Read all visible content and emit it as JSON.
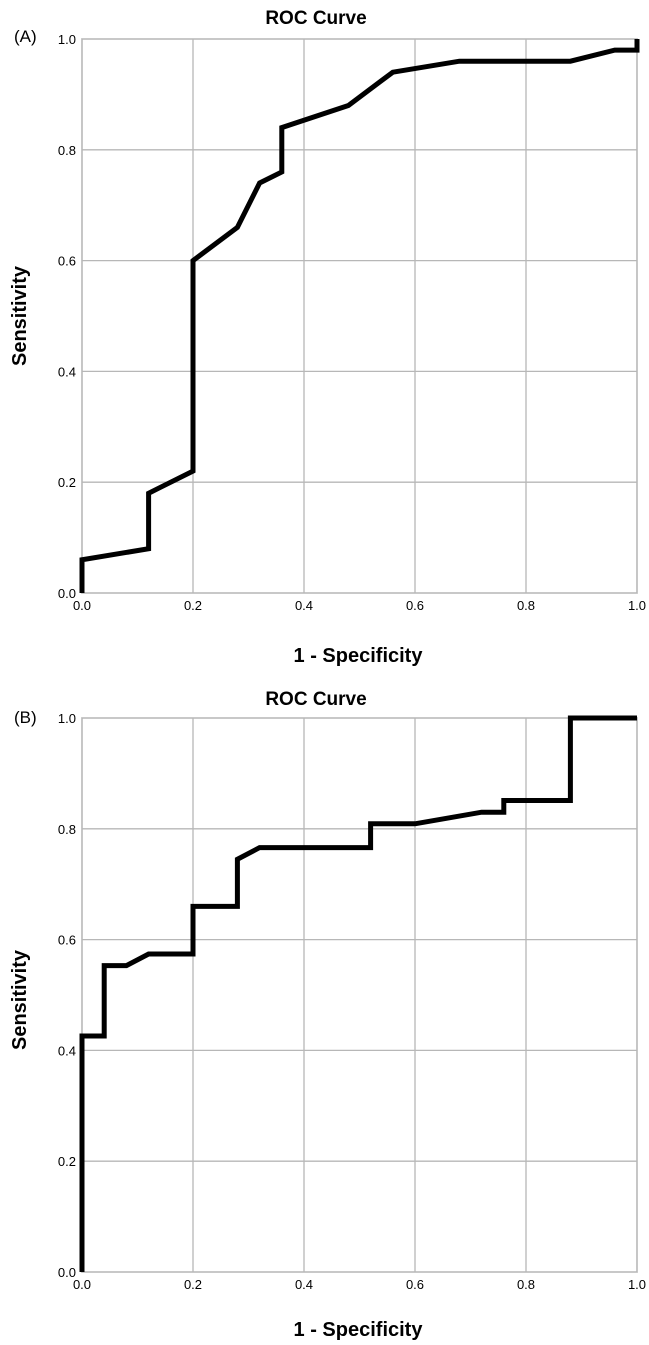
{
  "chart_data": [
    {
      "panel_label": "(A)",
      "type": "line",
      "title": "ROC Curve",
      "xlabel": "1 - Specificity",
      "ylabel": "Sensitivity",
      "xlim": [
        0,
        1
      ],
      "ylim": [
        0,
        1
      ],
      "xticks": [
        "0.0",
        "0.2",
        "0.4",
        "0.6",
        "0.8",
        "1.0"
      ],
      "yticks": [
        "0.0",
        "0.2",
        "0.4",
        "0.6",
        "0.8",
        "1.0"
      ],
      "grid": true,
      "x": [
        0.0,
        0.0,
        0.12,
        0.12,
        0.14,
        0.2,
        0.2,
        0.28,
        0.32,
        0.36,
        0.36,
        0.48,
        0.56,
        0.68,
        0.88,
        0.96,
        1.0,
        1.0
      ],
      "y": [
        0.0,
        0.06,
        0.08,
        0.18,
        0.19,
        0.22,
        0.6,
        0.66,
        0.74,
        0.76,
        0.84,
        0.88,
        0.94,
        0.96,
        0.96,
        0.98,
        0.98,
        1.0
      ]
    },
    {
      "panel_label": "(B)",
      "type": "line",
      "title": "ROC Curve",
      "xlabel": "1 - Specificity",
      "ylabel": "Sensitivity",
      "xlim": [
        0,
        1
      ],
      "ylim": [
        0,
        1
      ],
      "xticks": [
        "0.0",
        "0.2",
        "0.4",
        "0.6",
        "0.8",
        "1.0"
      ],
      "yticks": [
        "0.0",
        "0.2",
        "0.4",
        "0.6",
        "0.8",
        "1.0"
      ],
      "grid": true,
      "x": [
        0.0,
        0.0,
        0.04,
        0.04,
        0.08,
        0.12,
        0.2,
        0.2,
        0.28,
        0.28,
        0.32,
        0.52,
        0.52,
        0.6,
        0.72,
        0.76,
        0.76,
        0.88,
        0.88,
        1.0
      ],
      "y": [
        0.0,
        0.426,
        0.426,
        0.553,
        0.553,
        0.574,
        0.574,
        0.66,
        0.66,
        0.745,
        0.766,
        0.766,
        0.809,
        0.809,
        0.83,
        0.83,
        0.851,
        0.851,
        1.0,
        1.0
      ]
    }
  ]
}
